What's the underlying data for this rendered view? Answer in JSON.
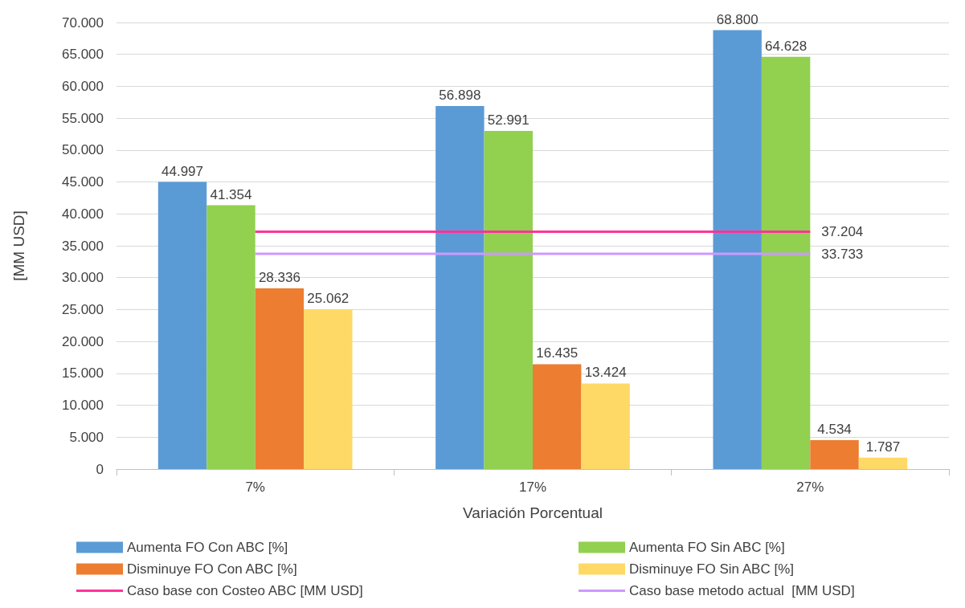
{
  "chart_data": {
    "type": "bar",
    "xlabel": "Variación Porcentual",
    "ylabel": "[MM USD]",
    "categories": [
      "7%",
      "17%",
      "27%"
    ],
    "series": [
      {
        "name": "Aumenta FO Con ABC [%]",
        "color": "#5b9bd5",
        "values": [
          44997,
          56898,
          68800
        ],
        "value_labels": [
          "44.997",
          "56.898",
          "68.800"
        ]
      },
      {
        "name": "Aumenta FO Sin ABC [%]",
        "color": "#92d050",
        "values": [
          41354,
          52991,
          64628
        ],
        "value_labels": [
          "41.354",
          "52.991",
          "64.628"
        ]
      },
      {
        "name": "Disminuye FO Con ABC [%]",
        "color": "#ed7d31",
        "values": [
          28336,
          16435,
          4534
        ],
        "value_labels": [
          "28.336",
          "16.435",
          "4.534"
        ]
      },
      {
        "name": "Disminuye FO Sin ABC [%]",
        "color": "#ffd966",
        "values": [
          25062,
          13424,
          1787
        ],
        "value_labels": [
          "25.062",
          "13.424",
          "1.787"
        ]
      },
      {
        "name": "Caso base con Costeo ABC [MM USD]",
        "type": "line",
        "color": "#ff3399",
        "values": [
          37204,
          37204,
          37204
        ],
        "value_labels": [
          null,
          null,
          "37.204"
        ]
      },
      {
        "name": "Caso base metodo actual  [MM USD]",
        "type": "line",
        "color": "#cc99ff",
        "values": [
          33733,
          33733,
          33733
        ],
        "value_labels": [
          null,
          null,
          "33.733"
        ]
      }
    ],
    "ylim": [
      0,
      70000
    ],
    "yticks": [
      0,
      {
        "value": 5000,
        "label": "5.000"
      },
      {
        "value": 10000,
        "label": "10.000"
      },
      {
        "value": 15000,
        "label": "15.000"
      },
      {
        "value": 20000,
        "label": "20.000"
      },
      {
        "value": 25000,
        "label": "25.000"
      },
      {
        "value": 30000,
        "label": "30.000"
      },
      {
        "value": 35000,
        "label": "35.000"
      },
      {
        "value": 40000,
        "label": "40.000"
      },
      {
        "value": 45000,
        "label": "45.000"
      },
      {
        "value": 50000,
        "label": "50.000"
      },
      {
        "value": 55000,
        "label": "55.000"
      },
      {
        "value": 60000,
        "label": "60.000"
      },
      {
        "value": 65000,
        "label": "65.000"
      },
      {
        "value": 70000,
        "label": "70.000"
      }
    ],
    "grid": "y",
    "legend": "bottom",
    "marker": "none"
  }
}
